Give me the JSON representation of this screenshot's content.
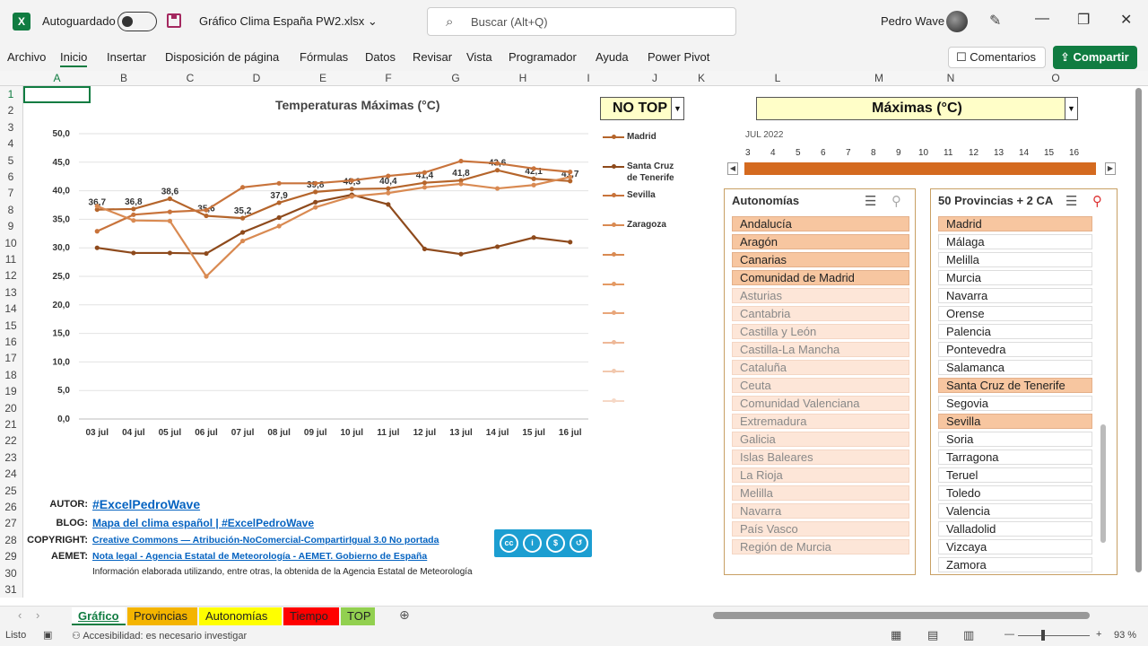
{
  "titlebar": {
    "autosave_label": "Autoguardado",
    "filename": "Gráfico Clima España PW2.xlsx",
    "search_placeholder": "Buscar (Alt+Q)",
    "user_name": "Pedro Wave"
  },
  "ribbon": {
    "tabs": [
      "Archivo",
      "Inicio",
      "Insertar",
      "Disposición de página",
      "Fórmulas",
      "Datos",
      "Revisar",
      "Vista",
      "Programador",
      "Ayuda",
      "Power Pivot"
    ],
    "active_tab": "Inicio",
    "comments_label": "Comentarios",
    "share_label": "Compartir"
  },
  "columns": [
    "A",
    "B",
    "C",
    "D",
    "E",
    "F",
    "G",
    "H",
    "I",
    "J",
    "K",
    "L",
    "M",
    "N",
    "O"
  ],
  "rows": [
    "1",
    "2",
    "3",
    "4",
    "5",
    "6",
    "7",
    "8",
    "9",
    "10",
    "11",
    "12",
    "13",
    "14",
    "15",
    "16",
    "17",
    "18",
    "19",
    "20",
    "21",
    "22",
    "23",
    "24",
    "25",
    "26",
    "27",
    "28",
    "29",
    "30",
    "31"
  ],
  "chart_data": {
    "type": "line",
    "title": "Temperaturas Máximas (°C)",
    "categories": [
      "03 jul",
      "04 jul",
      "05 jul",
      "06 jul",
      "07 jul",
      "08 jul",
      "09 jul",
      "10 jul",
      "11 jul",
      "12 jul",
      "13 jul",
      "14 jul",
      "15 jul",
      "16 jul"
    ],
    "y_ticks": [
      "50,0",
      "45,0",
      "40,0",
      "35,0",
      "30,0",
      "25,0",
      "20,0",
      "15,0",
      "10,0",
      "5,0",
      "0,0"
    ],
    "ylim": [
      0,
      50
    ],
    "grid": true,
    "legend_position": "right",
    "series": [
      {
        "name": "Madrid",
        "color": "#b5652b",
        "labels": true,
        "values": [
          36.7,
          36.8,
          38.6,
          35.6,
          35.2,
          37.9,
          39.8,
          40.3,
          40.4,
          41.4,
          41.8,
          43.6,
          42.1,
          41.7
        ]
      },
      {
        "name": "Santa Cruz de Tenerife",
        "color": "#8e4a1c",
        "labels": false,
        "values": [
          30.0,
          29.1,
          29.1,
          29.0,
          32.7,
          35.3,
          38.0,
          39.3,
          37.6,
          29.8,
          28.9,
          30.2,
          31.8,
          31.0
        ]
      },
      {
        "name": "Sevilla",
        "color": "#c8733b",
        "labels": false,
        "values": [
          32.9,
          35.8,
          36.3,
          36.6,
          40.6,
          41.3,
          41.3,
          41.8,
          42.6,
          43.2,
          45.2,
          44.8,
          43.9,
          43.3
        ]
      },
      {
        "name": "Zaragoza",
        "color": "#d98a52",
        "labels": false,
        "values": [
          37.3,
          34.8,
          34.7,
          25.0,
          31.2,
          33.8,
          37.1,
          39.0,
          39.6,
          40.6,
          41.2,
          40.4,
          41.0,
          42.4
        ]
      }
    ],
    "empty_legend_colors": [
      "#d98a52",
      "#e49a64",
      "#e8a67a",
      "#eeb898",
      "#f2c8ae",
      "#f6d8c6"
    ]
  },
  "top_dropdown": {
    "value": "NO TOP"
  },
  "measure_dropdown": {
    "value": "Máximas (°C)"
  },
  "timeline": {
    "label": "JUL 2022",
    "days": [
      "3",
      "4",
      "5",
      "6",
      "7",
      "8",
      "9",
      "10",
      "11",
      "12",
      "13",
      "14",
      "15",
      "16"
    ]
  },
  "slicer_autonomias": {
    "title": "Autonomías",
    "items": [
      {
        "label": "Andalucía",
        "state": "on"
      },
      {
        "label": "Aragón",
        "state": "on"
      },
      {
        "label": "Canarias",
        "state": "on"
      },
      {
        "label": "Comunidad de Madrid",
        "state": "on"
      },
      {
        "label": "Asturias",
        "state": "off"
      },
      {
        "label": "Cantabria",
        "state": "off"
      },
      {
        "label": "Castilla y León",
        "state": "off"
      },
      {
        "label": "Castilla-La Mancha",
        "state": "off"
      },
      {
        "label": "Cataluña",
        "state": "off"
      },
      {
        "label": "Ceuta",
        "state": "off"
      },
      {
        "label": "Comunidad Valenciana",
        "state": "off"
      },
      {
        "label": "Extremadura",
        "state": "off"
      },
      {
        "label": "Galicia",
        "state": "off"
      },
      {
        "label": "Islas Baleares",
        "state": "off"
      },
      {
        "label": "La Rioja",
        "state": "off"
      },
      {
        "label": "Melilla",
        "state": "off"
      },
      {
        "label": "Navarra",
        "state": "off"
      },
      {
        "label": "País Vasco",
        "state": "off"
      },
      {
        "label": "Región de Murcia",
        "state": "off"
      }
    ]
  },
  "slicer_provincias": {
    "title": "50 Provincias + 2 CA",
    "items": [
      {
        "label": "Madrid",
        "state": "on"
      },
      {
        "label": "Málaga",
        "state": "white"
      },
      {
        "label": "Melilla",
        "state": "white"
      },
      {
        "label": "Murcia",
        "state": "white"
      },
      {
        "label": "Navarra",
        "state": "white"
      },
      {
        "label": "Orense",
        "state": "white"
      },
      {
        "label": "Palencia",
        "state": "white"
      },
      {
        "label": "Pontevedra",
        "state": "white"
      },
      {
        "label": "Salamanca",
        "state": "white"
      },
      {
        "label": "Santa Cruz de Tenerife",
        "state": "on"
      },
      {
        "label": "Segovia",
        "state": "white"
      },
      {
        "label": "Sevilla",
        "state": "on"
      },
      {
        "label": "Soria",
        "state": "white"
      },
      {
        "label": "Tarragona",
        "state": "white"
      },
      {
        "label": "Teruel",
        "state": "white"
      },
      {
        "label": "Toledo",
        "state": "white"
      },
      {
        "label": "Valencia",
        "state": "white"
      },
      {
        "label": "Valladolid",
        "state": "white"
      },
      {
        "label": "Vizcaya",
        "state": "white"
      },
      {
        "label": "Zamora",
        "state": "white"
      }
    ]
  },
  "info": {
    "autor_key": "AUTOR:",
    "autor_val": "#ExcelPedroWave",
    "blog_key": "BLOG:",
    "blog_val": "Mapa del clima español | #ExcelPedroWave",
    "copyright_key": "COPYRIGHT:",
    "copyright_val": "Creative Commons — Atribución-NoComercial-CompartirIgual 3.0 No portada",
    "aemet_key": "AEMET:",
    "aemet_val": "Nota legal - Agencia Estatal de Meteorología - AEMET. Gobierno de España",
    "note": "Información elaborada utilizando, entre otras, la obtenida de la Agencia Estatal de Meteorología"
  },
  "sheet_tabs": [
    {
      "label": "Gráfico",
      "color": "#ffffff",
      "active": true
    },
    {
      "label": "Provincias",
      "color": "#f4b400"
    },
    {
      "label": "Autonomías",
      "color": "#ffff00"
    },
    {
      "label": "Tiempo",
      "color": "#ff0000"
    },
    {
      "label": "TOP",
      "color": "#92d050"
    }
  ],
  "status": {
    "ready": "Listo",
    "accessibility": "Accesibilidad: es necesario investigar",
    "zoom": "93 %"
  }
}
